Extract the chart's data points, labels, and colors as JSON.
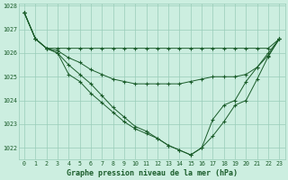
{
  "xlabel": "Graphe pression niveau de la mer (hPa)",
  "background_color": "#cceee0",
  "grid_color": "#99ccb8",
  "line_color": "#1a5c2a",
  "marker": "+",
  "x": [
    0,
    1,
    2,
    3,
    4,
    5,
    6,
    7,
    8,
    9,
    10,
    11,
    12,
    13,
    14,
    15,
    16,
    17,
    18,
    19,
    20,
    21,
    22,
    23
  ],
  "lines": [
    [
      1027.7,
      1026.6,
      1026.2,
      1026.2,
      1026.2,
      1026.2,
      1026.2,
      1026.2,
      1026.2,
      1026.2,
      1026.2,
      1026.2,
      1026.2,
      1026.2,
      1026.2,
      1026.2,
      1026.2,
      1026.2,
      1026.2,
      1026.2,
      1026.2,
      1026.2,
      1026.2,
      1026.6
    ],
    [
      1027.7,
      1026.6,
      1026.2,
      1026.1,
      1025.8,
      1025.6,
      1025.3,
      1025.1,
      1024.9,
      1024.8,
      1024.7,
      1024.7,
      1024.7,
      1024.7,
      1024.7,
      1024.8,
      1024.9,
      1025.0,
      1025.0,
      1025.0,
      1025.1,
      1025.4,
      1025.9,
      1026.6
    ],
    [
      1027.7,
      1026.6,
      1026.2,
      1026.0,
      1025.1,
      1024.8,
      1024.3,
      1023.9,
      1023.5,
      1023.1,
      1022.8,
      1022.6,
      1022.4,
      1022.1,
      1021.9,
      1021.7,
      1022.0,
      1023.2,
      1023.8,
      1024.0,
      1024.8,
      1025.4,
      1026.0,
      1026.6
    ],
    [
      1027.7,
      1026.6,
      1026.2,
      1026.0,
      1025.5,
      1025.1,
      1024.7,
      1024.2,
      1023.7,
      1023.3,
      1022.9,
      1022.7,
      1022.4,
      1022.1,
      1021.9,
      1021.7,
      1022.0,
      1022.5,
      1023.1,
      1023.8,
      1024.0,
      1024.9,
      1025.85,
      1026.6
    ]
  ],
  "ylim": [
    1021.5,
    1028.1
  ],
  "yticks": [
    1022,
    1023,
    1024,
    1025,
    1026,
    1027,
    1028
  ],
  "xticks": [
    0,
    1,
    2,
    3,
    4,
    5,
    6,
    7,
    8,
    9,
    10,
    11,
    12,
    13,
    14,
    15,
    16,
    17,
    18,
    19,
    20,
    21,
    22,
    23
  ],
  "figsize": [
    3.2,
    2.0
  ],
  "dpi": 100
}
